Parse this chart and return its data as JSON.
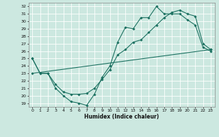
{
  "title": "",
  "xlabel": "Humidex (Indice chaleur)",
  "bg_color": "#cce8e0",
  "grid_color": "#ffffff",
  "line_color": "#1a7060",
  "xlim": [
    -0.5,
    23.5
  ],
  "ylim": [
    18.5,
    32.5
  ],
  "xticks": [
    0,
    1,
    2,
    3,
    4,
    5,
    6,
    7,
    8,
    9,
    10,
    11,
    12,
    13,
    14,
    15,
    16,
    17,
    18,
    19,
    20,
    21,
    22,
    23
  ],
  "yticks": [
    19,
    20,
    21,
    22,
    23,
    24,
    25,
    26,
    27,
    28,
    29,
    30,
    31,
    32
  ],
  "line1_x": [
    0,
    1,
    2,
    3,
    4,
    5,
    6,
    7,
    8,
    9,
    10,
    11,
    12,
    13,
    14,
    15,
    16,
    17,
    18,
    19,
    20,
    21,
    22,
    23
  ],
  "line1_y": [
    25,
    23,
    23,
    21,
    20,
    19.2,
    19,
    18.7,
    20.2,
    22.5,
    24,
    27.2,
    29.2,
    29,
    30.5,
    30.5,
    32,
    31,
    31,
    31,
    30.2,
    29.5,
    26.5,
    26
  ],
  "line2_x": [
    0,
    1,
    2,
    3,
    4,
    5,
    6,
    7,
    8,
    9,
    10,
    11,
    12,
    13,
    14,
    15,
    16,
    17,
    18,
    19,
    20,
    21,
    22,
    23
  ],
  "line2_y": [
    25,
    23,
    23,
    21.5,
    20.5,
    20.2,
    20.2,
    20.3,
    21.0,
    22.2,
    23.5,
    25.5,
    26.2,
    27.2,
    27.5,
    28.5,
    29.5,
    30.5,
    31.2,
    31.5,
    31.0,
    30.7,
    27.0,
    26.2
  ],
  "line3_x": [
    0,
    23
  ],
  "line3_y": [
    23,
    26.2
  ],
  "xlabel_fontsize": 5.5,
  "tick_fontsize": 4.5,
  "marker_size": 1.8,
  "linewidth": 0.8
}
